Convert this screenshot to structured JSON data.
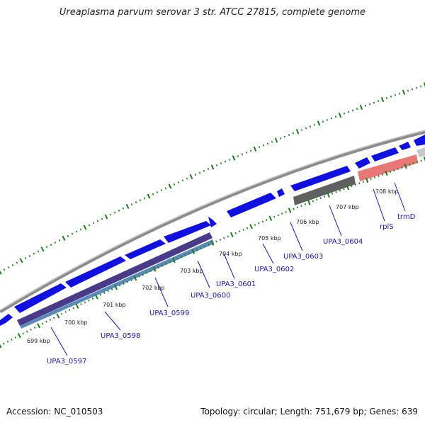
{
  "title": "Ureaplasma parvum serovar 3 str. ATCC 27815, complete genome",
  "accession": "Accession: NC_010503",
  "stats": "Topology: circular; Length: 751,679 bp; Genes: 639",
  "colors": {
    "backbone": "#8c8c8c",
    "gene_forward": "#1010e0",
    "tick": "#1e7a1e",
    "cds_band": "#4a3a8a",
    "cds_band_light": "#5a8ab8",
    "grey_feature": "#606060",
    "pink_feature": "#e87878",
    "label": "#1a1aa6"
  },
  "kbp_labels": [
    "699 kbp",
    "700 kbp",
    "701 kbp",
    "702 kbp",
    "703 kbp",
    "704 kbp",
    "705 kbp",
    "706 kbp",
    "707 kbp",
    "708 kbp"
  ],
  "gene_labels": [
    "UPA3_0597",
    "UPA3_0598",
    "UPA3_0599",
    "UPA3_0600",
    "UPA3_0601",
    "UPA3_0602",
    "UPA3_0603",
    "UPA3_0604",
    "rplS",
    "trmD"
  ]
}
